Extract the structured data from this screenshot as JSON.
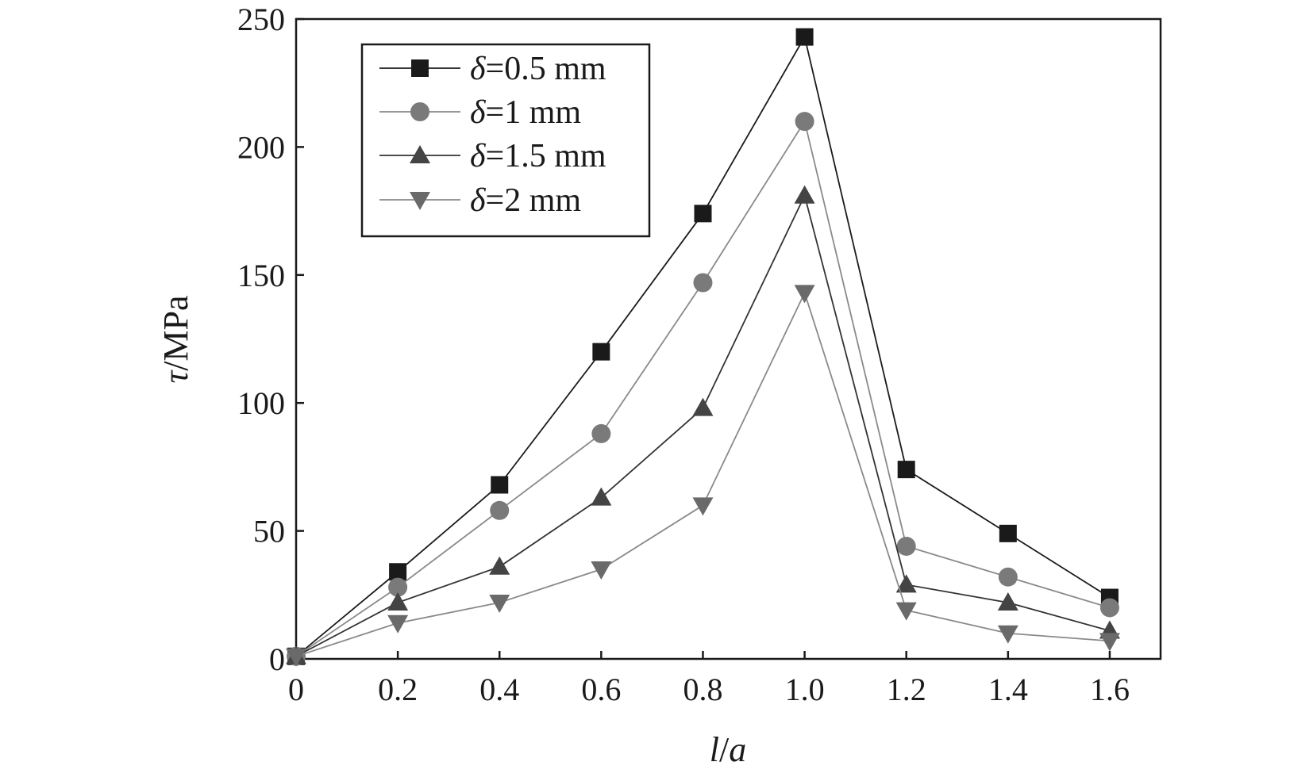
{
  "chart_data": {
    "type": "line",
    "title": "",
    "xlabel_var1": "l",
    "xlabel_sep": "/",
    "xlabel_var2": "a",
    "ylabel_var": "τ",
    "ylabel_unit": "/MPa",
    "xlim": [
      0,
      1.7
    ],
    "ylim": [
      0,
      250
    ],
    "x_ticks": [
      0,
      0.2,
      0.4,
      0.6,
      0.8,
      1.0,
      1.2,
      1.4,
      1.6
    ],
    "x_tick_labels": [
      "0",
      "0.2",
      "0.4",
      "0.6",
      "0.8",
      "1.0",
      "1.2",
      "1.4",
      "1.6"
    ],
    "y_ticks": [
      0,
      50,
      100,
      150,
      200,
      250
    ],
    "y_tick_labels": [
      "0",
      "50",
      "100",
      "150",
      "200",
      "250"
    ],
    "grid": false,
    "legend_position": "top-left",
    "x": [
      0,
      0.2,
      0.4,
      0.6,
      0.8,
      1.0,
      1.2,
      1.4,
      1.6
    ],
    "series": [
      {
        "symbol": "δ",
        "value_text": "=0.5 mm",
        "marker": "square",
        "color": "#1a1a1a",
        "line_color": "#1a1a1a",
        "values": [
          1,
          34,
          68,
          120,
          174,
          243,
          74,
          49,
          24
        ]
      },
      {
        "symbol": "δ",
        "value_text": "=1 mm",
        "marker": "circle",
        "color": "#7a7a7a",
        "line_color": "#8a8a8a",
        "values": [
          1,
          28,
          58,
          88,
          147,
          210,
          44,
          32,
          20
        ]
      },
      {
        "symbol": "δ",
        "value_text": "=1.5 mm",
        "marker": "triangle-up",
        "color": "#444444",
        "line_color": "#333333",
        "values": [
          1,
          22,
          36,
          63,
          98,
          181,
          29,
          22,
          11
        ]
      },
      {
        "symbol": "δ",
        "value_text": "=2 mm",
        "marker": "triangle-down",
        "color": "#6a6a6a",
        "line_color": "#8a8a8a",
        "values": [
          1,
          14,
          22,
          35,
          60,
          143,
          19,
          10,
          7
        ]
      }
    ]
  }
}
